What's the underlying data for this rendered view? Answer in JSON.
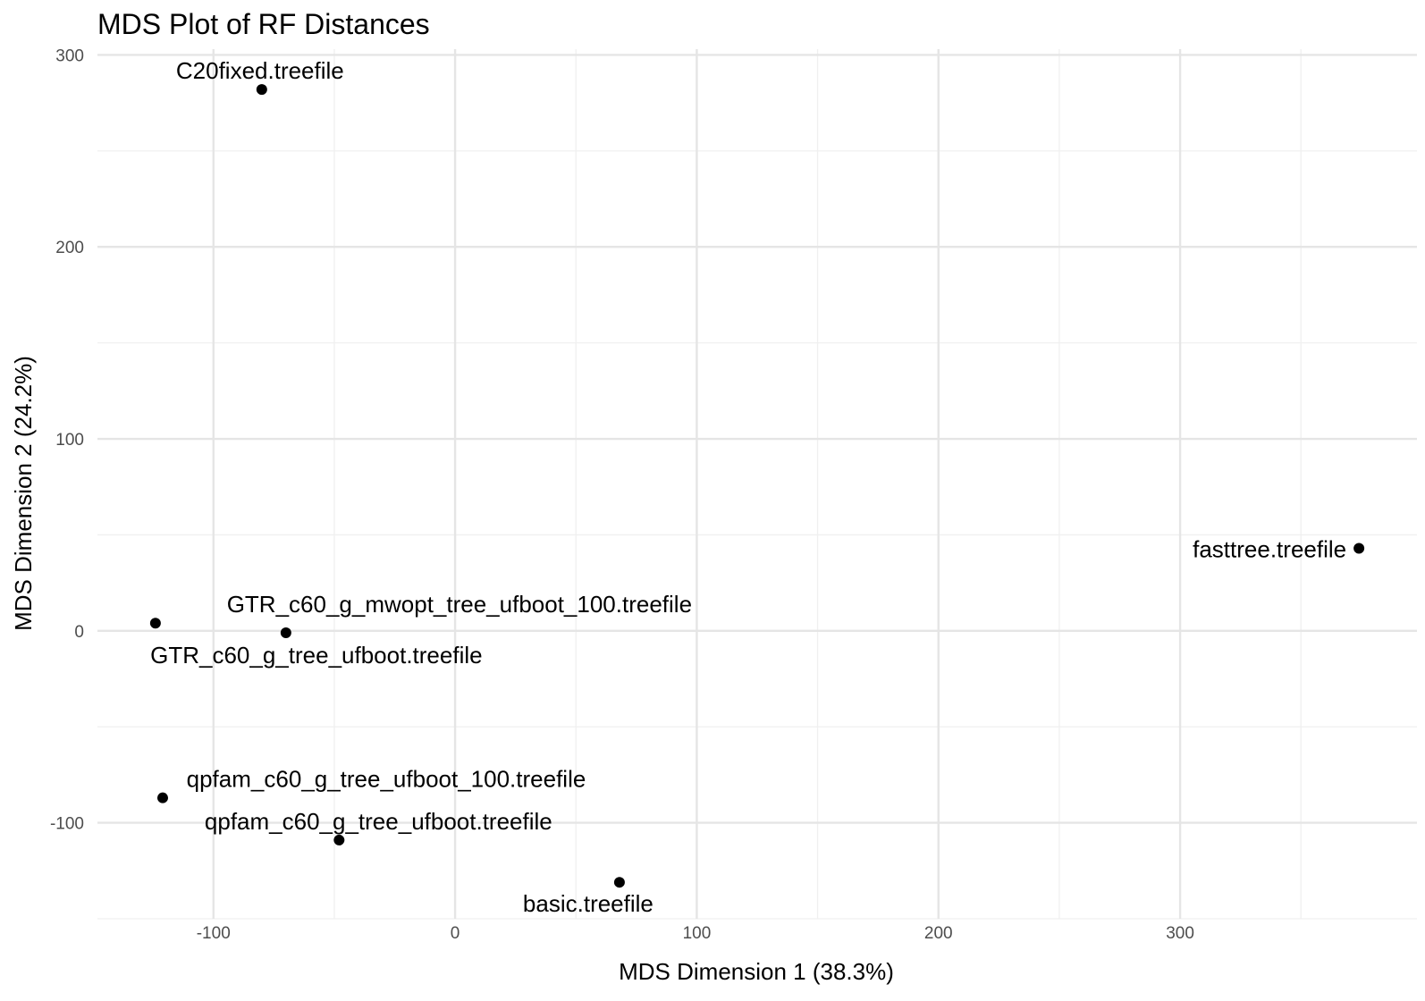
{
  "chart_data": {
    "type": "scatter",
    "title": "MDS Plot of RF Distances",
    "xlabel": "MDS Dimension 1 (38.3%)",
    "ylabel": "MDS Dimension 2 (24.2%)",
    "xlim": [
      -148,
      398
    ],
    "ylim": [
      -150,
      303
    ],
    "x_ticks": [
      -100,
      0,
      100,
      200,
      300
    ],
    "x_tick_labels": [
      "-100",
      "0",
      "100",
      "200",
      "300"
    ],
    "y_ticks": [
      -100,
      0,
      100,
      200,
      300
    ],
    "y_tick_labels": [
      "-100",
      "0",
      "100",
      "200",
      "300"
    ],
    "grid": true,
    "point_color": "#000000",
    "points": [
      {
        "label": "C20fixed.treefile",
        "x": -80,
        "y": 282
      },
      {
        "label": "fasttree.treefile",
        "x": 374,
        "y": 43
      },
      {
        "label": "GTR_c60_g_mwopt_tree_ufboot_100.treefile",
        "x": -124,
        "y": 4
      },
      {
        "label": "GTR_c60_g_tree_ufboot.treefile",
        "x": -70,
        "y": -1
      },
      {
        "label": "qpfam_c60_g_tree_ufboot_100.treefile",
        "x": -121,
        "y": -87
      },
      {
        "label": "qpfam_c60_g_tree_ufboot.treefile",
        "x": -48,
        "y": -109
      },
      {
        "label": "basic.treefile",
        "x": 68,
        "y": -131
      }
    ]
  }
}
